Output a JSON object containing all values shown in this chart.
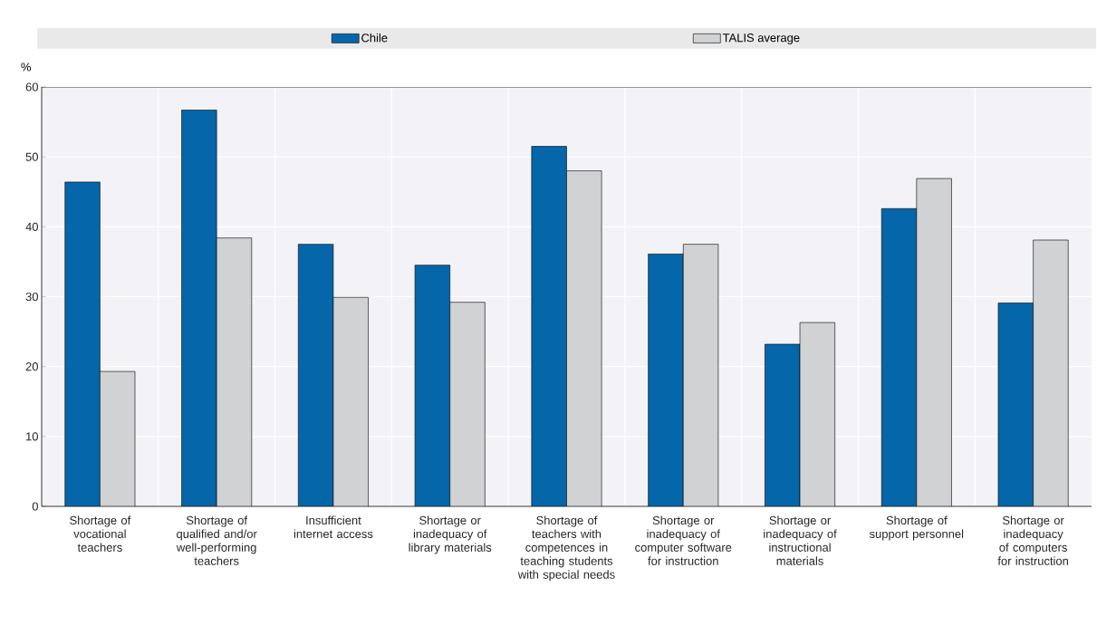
{
  "chart_data": {
    "type": "bar",
    "ylabel": "%",
    "categories": [
      "Shortage of vocational teachers",
      "Shortage of qualified and/or well-performing teachers",
      "Insufficient internet access",
      "Shortage or inadequacy of library materials",
      "Shortage of teachers with competences in teaching students with special needs",
      "Shortage or inadequacy of computer software for instruction",
      "Shortage or inadequacy of instructional materials",
      "Shortage of support personnel",
      "Shortage or inadequacy of computers for instruction"
    ],
    "series": [
      {
        "name": "Chile",
        "color": "#0566aa",
        "values": [
          46.4,
          56.7,
          37.5,
          34.5,
          51.5,
          36.1,
          23.2,
          42.6,
          29.1
        ]
      },
      {
        "name": "TALIS average",
        "color": "#d1d2d4",
        "values": [
          19.3,
          38.4,
          29.9,
          29.2,
          48.0,
          37.5,
          26.3,
          46.9,
          38.1
        ]
      }
    ],
    "ylim": [
      0,
      60
    ],
    "yticks": [
      0,
      10,
      20,
      30,
      40,
      50,
      60
    ],
    "grid": true,
    "legend": "top"
  }
}
